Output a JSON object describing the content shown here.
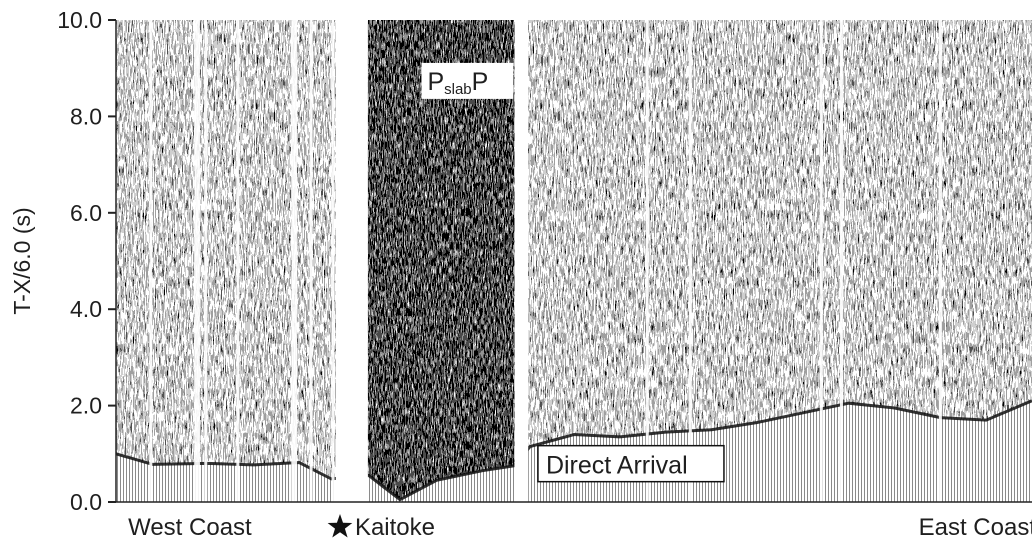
{
  "chart_data": {
    "type": "seismic-section",
    "ylabel": "T-X/6.0 (s)",
    "ylim": [
      0,
      10
    ],
    "yticks": [
      "0.0",
      "2.0",
      "4.0",
      "6.0",
      "8.0",
      "10.0"
    ],
    "ytick_values": [
      0,
      2,
      4,
      6,
      8,
      10
    ],
    "grid": false,
    "profile": {
      "x_domain": [
        0,
        1
      ],
      "labels": [
        {
          "text": "West Coast",
          "x": 0.07
        },
        {
          "text": "Kaitoke",
          "x": 0.31,
          "marker": "star"
        },
        {
          "text": "East Coast",
          "x": 0.985
        }
      ]
    },
    "data_gaps": [
      [
        0.24,
        0.275
      ],
      [
        0.435,
        0.45
      ]
    ],
    "trace_dropouts": [
      0.038,
      0.087,
      0.09,
      0.098,
      0.133,
      0.193,
      0.196,
      0.213,
      0.237,
      0.58,
      0.627,
      0.77,
      0.792,
      0.9
    ],
    "first_arrival_curve": {
      "x": [
        0.0,
        0.04,
        0.1,
        0.15,
        0.2,
        0.235,
        0.276,
        0.31,
        0.35,
        0.4,
        0.434,
        0.452,
        0.5,
        0.55,
        0.6,
        0.65,
        0.7,
        0.75,
        0.8,
        0.85,
        0.9,
        0.95,
        1.0
      ],
      "y": [
        1.0,
        0.78,
        0.8,
        0.77,
        0.82,
        0.48,
        0.55,
        0.05,
        0.45,
        0.65,
        0.75,
        1.15,
        1.4,
        1.35,
        1.45,
        1.5,
        1.65,
        1.85,
        2.05,
        1.95,
        1.75,
        1.7,
        2.1
      ]
    },
    "annotations": [
      {
        "text_main": "P",
        "text_sub": "slab",
        "text_end": "P",
        "x": 0.34,
        "y": 8.55
      },
      {
        "text": "Direct Arrival",
        "x": 0.465,
        "y": 0.65
      }
    ]
  }
}
